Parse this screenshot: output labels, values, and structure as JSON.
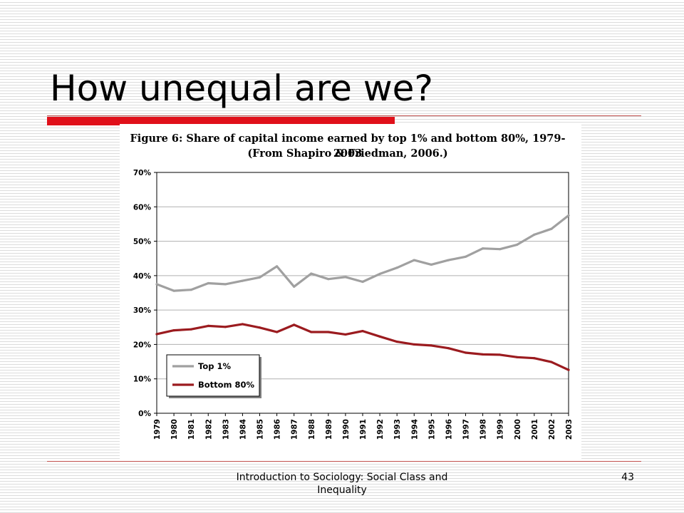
{
  "slide": {
    "title": "How unequal are we?",
    "footer": "Introduction to Sociology: Social Class and Inequality",
    "page_number": "43"
  },
  "chart_data": {
    "type": "line",
    "title": "Figure 6:  Share of capital income earned by top 1% and bottom 80%, 1979-2003",
    "subtitle": "(From Shapiro & Friedman, 2006.)",
    "xlabel": "",
    "ylabel": "",
    "ylim": [
      0,
      70
    ],
    "yticks": [
      "0%",
      "10%",
      "20%",
      "30%",
      "40%",
      "50%",
      "60%",
      "70%"
    ],
    "categories": [
      "1979",
      "1980",
      "1981",
      "1982",
      "1983",
      "1984",
      "1985",
      "1986",
      "1987",
      "1988",
      "1989",
      "1990",
      "1991",
      "1992",
      "1993",
      "1994",
      "1995",
      "1996",
      "1997",
      "1998",
      "1999",
      "2000",
      "2001",
      "2002",
      "2003"
    ],
    "grid": true,
    "legend": "bottom-left",
    "series": [
      {
        "name": "Top 1%",
        "color": "#a0a0a0",
        "values": [
          37.5,
          35.6,
          35.9,
          37.8,
          37.5,
          38.5,
          39.5,
          42.7,
          36.8,
          40.6,
          39.0,
          39.6,
          38.2,
          40.5,
          42.3,
          44.5,
          43.2,
          44.5,
          45.5,
          47.9,
          47.7,
          49.0,
          51.9,
          53.6,
          57.5
        ]
      },
      {
        "name": "Bottom 80%",
        "color": "#9b1b1f",
        "values": [
          23.0,
          24.1,
          24.4,
          25.4,
          25.1,
          25.9,
          24.9,
          23.6,
          25.7,
          23.6,
          23.6,
          22.9,
          23.9,
          22.3,
          20.8,
          20.0,
          19.7,
          18.9,
          17.6,
          17.1,
          17.0,
          16.3,
          16.0,
          14.9,
          12.6
        ]
      }
    ]
  }
}
